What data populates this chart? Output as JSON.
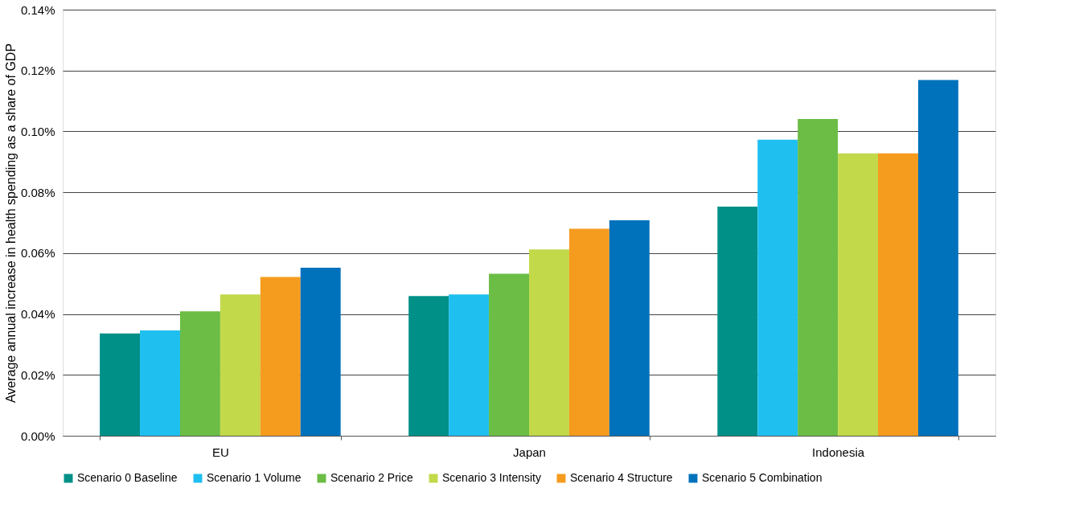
{
  "chart_data": {
    "type": "bar",
    "ylabel": "Average annual increase in health spending as a share of GDP",
    "categories": [
      "EU",
      "Japan",
      "Indonesia"
    ],
    "series": [
      {
        "name": "Scenario 0 Baseline",
        "color": "#009088",
        "values": [
          0.0336,
          0.0459,
          0.0753
        ]
      },
      {
        "name": "Scenario 1 Volume",
        "color": "#1fbff0",
        "values": [
          0.0346,
          0.0464,
          0.0973
        ]
      },
      {
        "name": "Scenario 2 Price",
        "color": "#6bbd45",
        "values": [
          0.0409,
          0.0532,
          0.1041
        ]
      },
      {
        "name": "Scenario 3 Intensity",
        "color": "#c2d94a",
        "values": [
          0.0464,
          0.0612,
          0.0928
        ]
      },
      {
        "name": "Scenario 4 Structure",
        "color": "#f59c1f",
        "values": [
          0.0522,
          0.068,
          0.0928
        ]
      },
      {
        "name": "Scenario 5 Combination",
        "color": "#0072bc",
        "values": [
          0.0552,
          0.0708,
          0.1169
        ]
      }
    ],
    "ylim": [
      0,
      0.14
    ],
    "yticks": [
      {
        "value": 0,
        "label": "0.00%"
      },
      {
        "value": 0.02,
        "label": "0.02%"
      },
      {
        "value": 0.04,
        "label": "0.04%"
      },
      {
        "value": 0.06,
        "label": "0.06%"
      },
      {
        "value": 0.08,
        "label": "0.08%"
      },
      {
        "value": 0.1,
        "label": "0.10%"
      },
      {
        "value": 0.12,
        "label": "0.12%"
      },
      {
        "value": 0.14,
        "label": "0.14%"
      }
    ],
    "grid": "y",
    "legend": "bottom"
  }
}
